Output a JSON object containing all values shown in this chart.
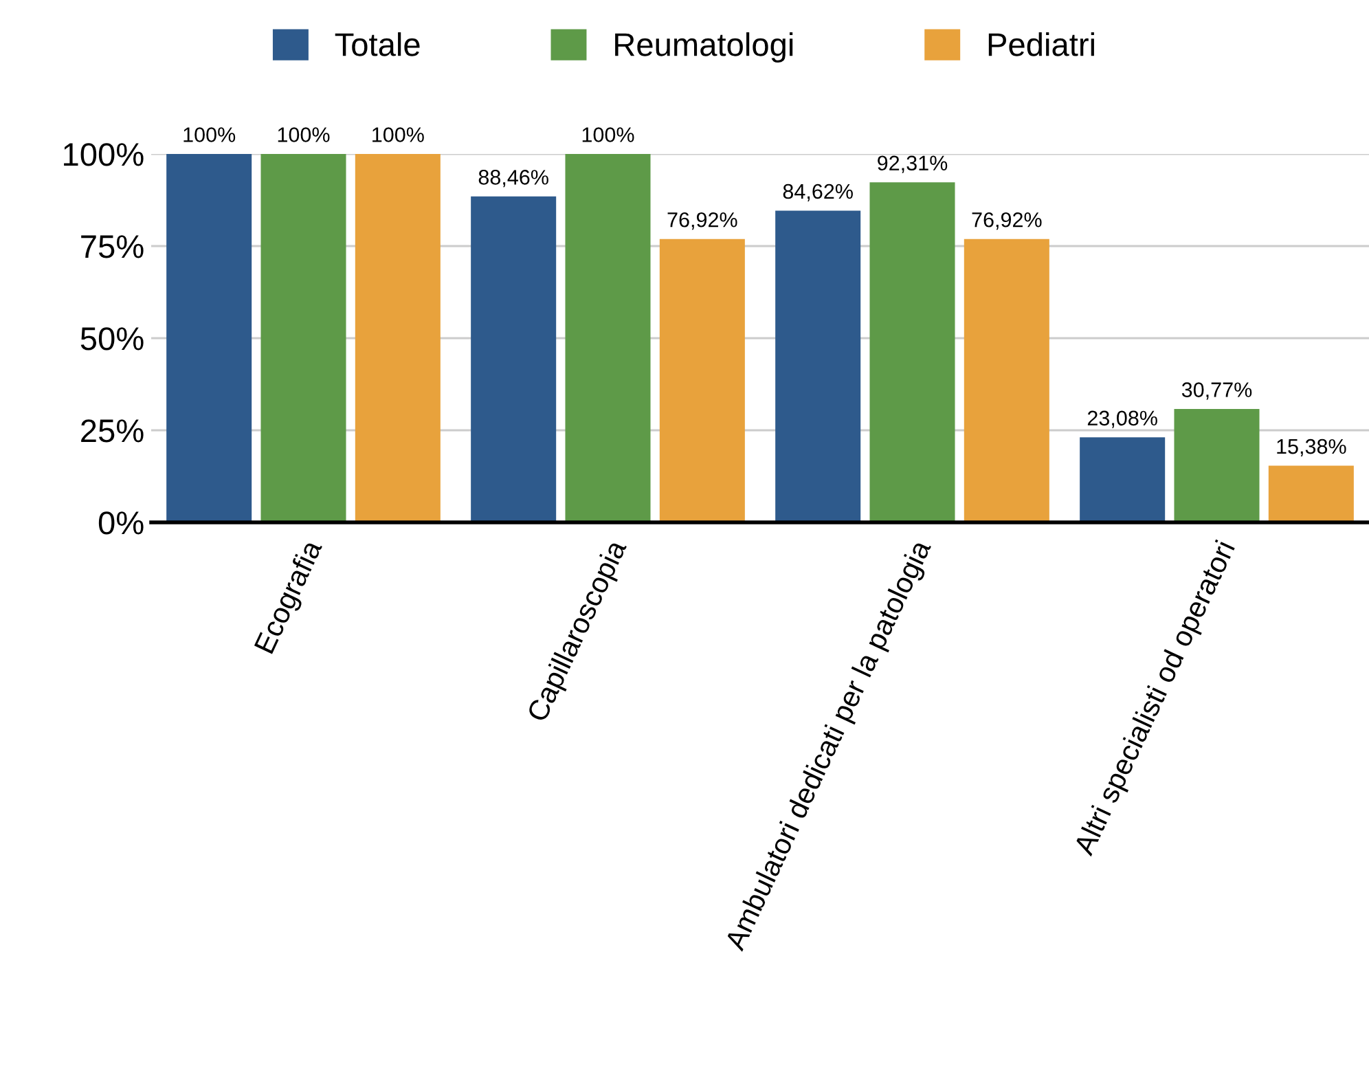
{
  "chart_data": {
    "type": "bar",
    "categories": [
      "Ecografia",
      "Capillaroscopia",
      "Ambulatori dedicati per la patologia",
      "Altri specialisti od operatori"
    ],
    "series": [
      {
        "name": "Totale",
        "color": "#2e5a8c",
        "values": [
          100,
          88.46,
          84.62,
          23.08
        ],
        "value_labels": [
          "100%",
          "88,46%",
          "84,62%",
          "23,08%"
        ]
      },
      {
        "name": "Reumatologi",
        "color": "#5e9a48",
        "values": [
          100,
          100,
          92.31,
          30.77
        ],
        "value_labels": [
          "100%",
          "100%",
          "92,31%",
          "30,77%"
        ]
      },
      {
        "name": "Pediatri",
        "color": "#e8a23c",
        "values": [
          100,
          76.92,
          76.92,
          15.38
        ],
        "value_labels": [
          "100%",
          "76,92%",
          "76,92%",
          "15,38%"
        ]
      }
    ],
    "ylim": [
      0,
      100
    ],
    "yticks": [
      {
        "value": 0,
        "label": "0%"
      },
      {
        "value": 25,
        "label": "25%"
      },
      {
        "value": 50,
        "label": "50%"
      },
      {
        "value": 75,
        "label": "75%"
      },
      {
        "value": 100,
        "label": "100%"
      }
    ],
    "grid": "y",
    "legend": "top"
  }
}
